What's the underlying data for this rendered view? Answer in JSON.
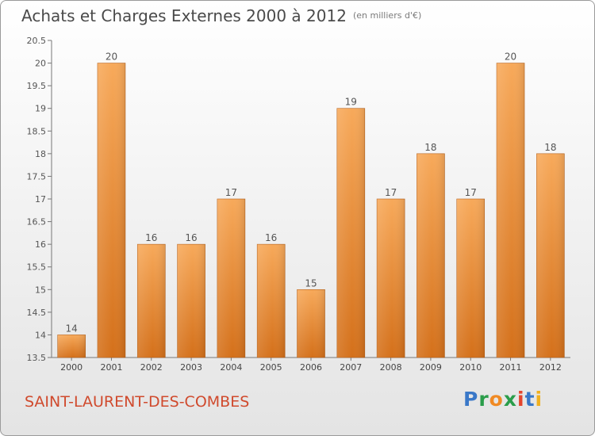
{
  "header": {
    "title": "Achats et Charges Externes 2000 à 2012",
    "unit": "(en milliers d'€)"
  },
  "footer": {
    "commune": "SAINT-LAURENT-DES-COMBES",
    "brand": "Proxiti"
  },
  "colors": {
    "bar_light": "#f7a95a",
    "bar_dark": "#d4701a",
    "commune_text": "#d04a2d"
  },
  "chart_data": {
    "type": "bar",
    "categories": [
      "2000",
      "2001",
      "2002",
      "2003",
      "2004",
      "2005",
      "2006",
      "2007",
      "2008",
      "2009",
      "2010",
      "2011",
      "2012"
    ],
    "values": [
      14,
      20,
      16,
      16,
      17,
      16,
      15,
      19,
      17,
      18,
      17,
      20,
      18
    ],
    "value_labels": [
      "14",
      "20",
      "16",
      "16",
      "17",
      "16",
      "15",
      "19",
      "17",
      "18",
      "17",
      "20",
      "18"
    ],
    "ylim": [
      13.5,
      20.5
    ],
    "yticks": [
      "13.5",
      "14",
      "14.5",
      "15",
      "15.5",
      "16",
      "16.5",
      "17",
      "17.5",
      "18",
      "18.5",
      "19",
      "19.5",
      "20",
      "20.5"
    ],
    "grid": false,
    "title": "Achats et Charges Externes 2000 à 2012",
    "xlabel": "",
    "ylabel": ""
  }
}
